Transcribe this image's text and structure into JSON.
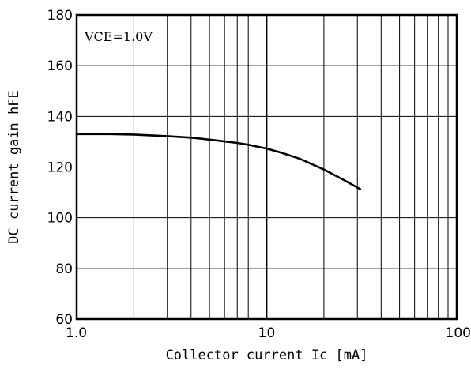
{
  "chart_data": {
    "type": "line",
    "xlabel": "Collector current Ic [mA]",
    "ylabel": "DC current gain hFE",
    "x_scale": "log",
    "xlim": [
      1,
      100
    ],
    "ylim": [
      60,
      180
    ],
    "x_ticks": [
      {
        "value": 1,
        "label": "1.0"
      },
      {
        "value": 10,
        "label": "10"
      },
      {
        "value": 100,
        "label": "100"
      }
    ],
    "y_ticks": [
      60,
      80,
      100,
      120,
      140,
      160,
      180
    ],
    "annotation": "VCE=1.0V",
    "grid": true,
    "series": [
      {
        "color": "#000000",
        "x": [
          1,
          1.5,
          2,
          3,
          4,
          5,
          6,
          7,
          8,
          10,
          12,
          15,
          20,
          25,
          31
        ],
        "y": [
          133,
          133,
          132.8,
          132.2,
          131.6,
          130.8,
          130.1,
          129.5,
          128.8,
          127.3,
          125.6,
          123.2,
          119,
          115.2,
          111.3
        ]
      }
    ]
  }
}
